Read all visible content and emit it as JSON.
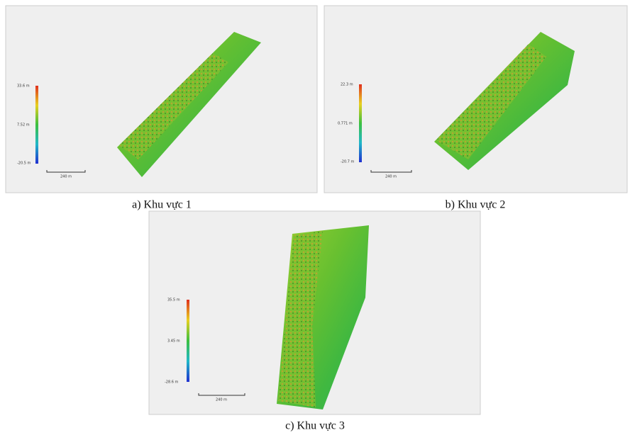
{
  "panels": [
    {
      "caption": "a) Khu vực 1",
      "colorbar": {
        "max": "33.6 m",
        "mid": "7.52 m",
        "min": "-20.5 m"
      },
      "scale": "240 m"
    },
    {
      "caption": "b) Khu vực 2",
      "colorbar": {
        "max": "22.3 m",
        "mid": "0.771 m",
        "min": "-20.7 m"
      },
      "scale": "240 m"
    },
    {
      "caption": "c) Khu vực 3",
      "colorbar": {
        "max": "35.5 m",
        "mid": "3.45 m",
        "min": "-28.6 m"
      },
      "scale": "240 m"
    }
  ]
}
